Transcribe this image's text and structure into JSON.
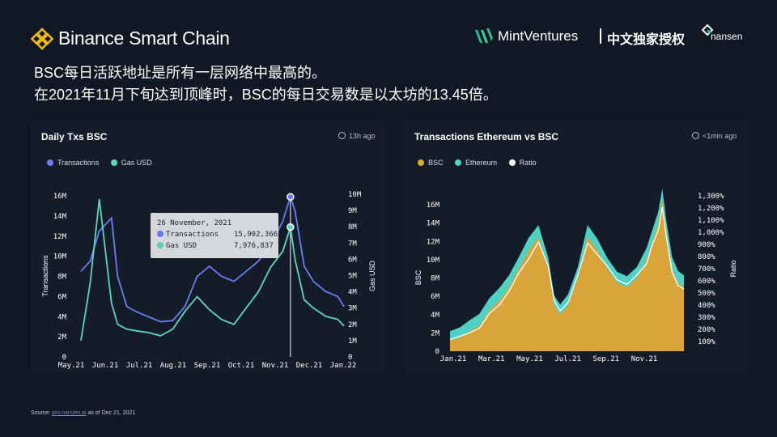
{
  "header": {
    "brand": "Binance Smart Chain",
    "partner": "MintVentures",
    "exclusive": "中文独家授权",
    "nansen": "nansen",
    "icons": [
      "bsc-logo-icon",
      "mint-ventures-logo-icon",
      "nansen-logo-icon"
    ]
  },
  "headline": {
    "line1": "BSC每日活跃地址是所有一层网络中最高的。",
    "line2": "在2021年11月下旬达到顶峰时，BSC的每日交易数是以太坊的13.45倍。"
  },
  "panels": {
    "left": {
      "title": "Daily Txs BSC",
      "updated": "13h ago",
      "legend": [
        {
          "label": "Transactions",
          "color": "#6c7cf3"
        },
        {
          "label": "Gas USD",
          "color": "#5ed6c1"
        }
      ]
    },
    "right": {
      "title": "Transactions Ethereum vs BSC",
      "updated": "<1min ago",
      "legend": [
        {
          "label": "BSC",
          "color": "#e3a92f"
        },
        {
          "label": "Ethereum",
          "color": "#4fd1c5"
        },
        {
          "label": "Ratio",
          "color": "#ffffff"
        }
      ]
    }
  },
  "tooltip": {
    "date": "26 November, 2021",
    "rows": [
      {
        "label": "Transactions",
        "value": "15,902,366",
        "color": "#6c7cf3"
      },
      {
        "label": "Gas USD",
        "value": "7,976,837",
        "color": "#5ed6c1"
      }
    ]
  },
  "source": {
    "prefix": "Source: ",
    "link": "pro.nansen.ai",
    "suffix": " as of Dec 21, 2021"
  },
  "chart_data": [
    {
      "type": "line",
      "title": "Daily Txs BSC",
      "xlabel": "",
      "ylabel": "Transactions",
      "y2label": "Gas USD",
      "x_ticks": [
        "May.21",
        "Jun.21",
        "Jul.21",
        "Aug.21",
        "Sep.21",
        "Oct.21",
        "Nov.21",
        "Dec.21",
        "Jan.22"
      ],
      "y_ticks": [
        "0",
        "2M",
        "4M",
        "6M",
        "8M",
        "10M",
        "12M",
        "14M",
        "16M"
      ],
      "y2_ticks": [
        "0",
        "1M",
        "2M",
        "3M",
        "4M",
        "5M",
        "6M",
        "7M",
        "8M",
        "9M",
        "10M"
      ],
      "ylim": [
        0,
        16000000
      ],
      "y2lim": [
        0,
        10000000
      ],
      "x": [
        0,
        0.3,
        0.6,
        1.0,
        1.2,
        1.5,
        1.8,
        2.2,
        2.6,
        3.0,
        3.4,
        3.8,
        4.2,
        4.6,
        5.0,
        5.4,
        5.8,
        6.2,
        6.6,
        6.85,
        7.0,
        7.3,
        7.6,
        8.0,
        8.4,
        8.6
      ],
      "series": [
        {
          "name": "Transactions",
          "axis": "left",
          "values": [
            8500000,
            9500000,
            12500000,
            13800000,
            8000000,
            5000000,
            4500000,
            4000000,
            3500000,
            3600000,
            5000000,
            8000000,
            9000000,
            8000000,
            7500000,
            8500000,
            9500000,
            11000000,
            13500000,
            15902366,
            14500000,
            9000000,
            7500000,
            6500000,
            6000000,
            5000000
          ]
        },
        {
          "name": "Gas USD",
          "axis": "right",
          "values": [
            1000000,
            4500000,
            9700000,
            3300000,
            2000000,
            1700000,
            1600000,
            1500000,
            1300000,
            1700000,
            2800000,
            3700000,
            2900000,
            2300000,
            2000000,
            3000000,
            4000000,
            5500000,
            6500000,
            7976837,
            6000000,
            3500000,
            3000000,
            2500000,
            2300000,
            1900000
          ]
        }
      ],
      "highlight": {
        "date": "26 November, 2021",
        "Transactions": 15902366,
        "Gas USD": 7976837
      },
      "grid": false,
      "legend": "top-left"
    },
    {
      "type": "area",
      "title": "Transactions Ethereum vs BSC",
      "xlabel": "",
      "ylabel": "BSC",
      "y2label": "Ratio",
      "x_ticks": [
        "Jan.21",
        "Mar.21",
        "May.21",
        "Jul.21",
        "Sep.21",
        "Nov.21"
      ],
      "y_ticks": [
        "0",
        "2M",
        "4M",
        "6M",
        "8M",
        "10M",
        "12M",
        "14M",
        "16M"
      ],
      "y2_ticks": [
        "100%",
        "200%",
        "300%",
        "400%",
        "500%",
        "600%",
        "700%",
        "800%",
        "900%",
        "1,000%",
        "1,100%",
        "1,200%",
        "1,300%"
      ],
      "ylim": [
        0,
        17000000
      ],
      "y2lim": [
        0,
        1350
      ],
      "x": [
        0,
        0.5,
        1.0,
        1.5,
        2.0,
        2.5,
        3.0,
        3.5,
        4.0,
        4.5,
        5.0,
        5.3,
        5.6,
        6.0,
        6.5,
        7.0,
        7.5,
        8.0,
        8.5,
        9.0,
        9.5,
        10.0,
        10.3,
        10.6,
        10.8,
        11.0,
        11.3,
        11.6,
        11.9
      ],
      "series": [
        {
          "name": "BSC",
          "values": [
            1200000,
            1500000,
            2200000,
            2800000,
            4500000,
            5500000,
            7000000,
            9000000,
            11000000,
            12500000,
            9000000,
            5000000,
            4000000,
            5000000,
            8000000,
            12500000,
            11000000,
            9000000,
            7500000,
            7000000,
            8000000,
            10000000,
            12000000,
            14000000,
            16500000,
            13000000,
            9000000,
            7500000,
            7000000
          ]
        },
        {
          "name": "Ethereum",
          "values": [
            1000000,
            1100000,
            1200000,
            1300000,
            1300000,
            1400000,
            1300000,
            1300000,
            1400000,
            1300000,
            1200000,
            1100000,
            1100000,
            1200000,
            1200000,
            1300000,
            1300000,
            1200000,
            1200000,
            1200000,
            1200000,
            1300000,
            1300000,
            1300000,
            1300000,
            1300000,
            1300000,
            1300000,
            1300000
          ]
        },
        {
          "name": "Ratio",
          "axis": "right",
          "values": [
            100,
            130,
            160,
            200,
            330,
            400,
            520,
            680,
            800,
            950,
            740,
            440,
            350,
            420,
            660,
            940,
            840,
            740,
            620,
            580,
            660,
            760,
            930,
            1050,
            1250,
            1000,
            690,
            570,
            540
          ]
        }
      ],
      "grid": false,
      "legend": "top-left"
    }
  ]
}
